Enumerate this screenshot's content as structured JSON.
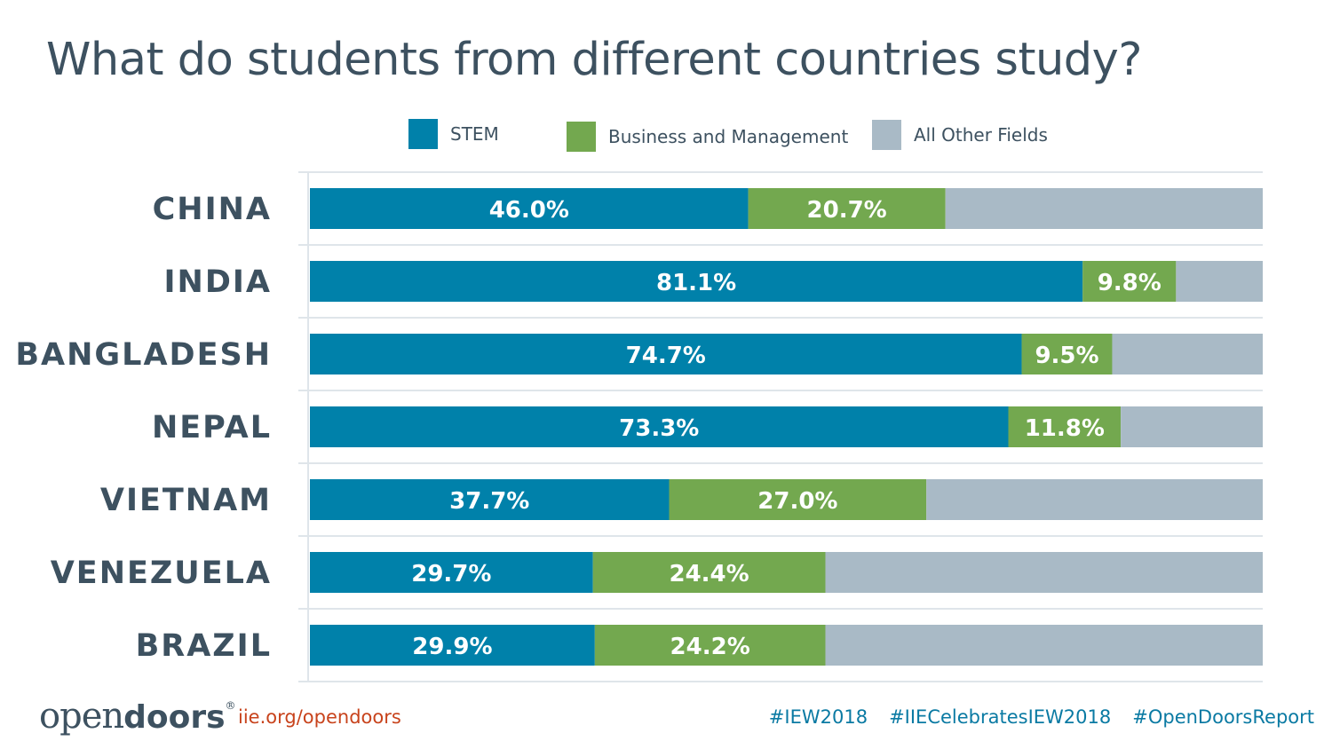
{
  "title": "What do students from different countries study?",
  "legend": [
    {
      "label": "STEM",
      "color": "#0081aa"
    },
    {
      "label": "Business and Management",
      "color": "#73a84f"
    },
    {
      "label": "All Other Fields",
      "color": "#a9bac6"
    }
  ],
  "chart_data": {
    "type": "bar",
    "orientation": "horizontal",
    "stacked": true,
    "percent_stacked": true,
    "title": "What do students from different countries study?",
    "categories": [
      "CHINA",
      "INDIA",
      "BANGLADESH",
      "NEPAL",
      "VIETNAM",
      "VENEZUELA",
      "BRAZIL"
    ],
    "series": [
      {
        "name": "STEM",
        "color": "#0081aa",
        "values": [
          46.0,
          81.1,
          74.7,
          73.3,
          37.7,
          29.7,
          29.9
        ],
        "labels": [
          "46.0%",
          "81.1%",
          "74.7%",
          "73.3%",
          "37.7%",
          "29.7%",
          "29.9%"
        ]
      },
      {
        "name": "Business and Management",
        "color": "#73a84f",
        "values": [
          20.7,
          9.8,
          9.5,
          11.8,
          27.0,
          24.4,
          24.2
        ],
        "labels": [
          "20.7%",
          "9.8%",
          "9.5%",
          "11.8%",
          "27.0%",
          "24.4%",
          "24.2%"
        ]
      },
      {
        "name": "All Other Fields",
        "color": "#a9bac6",
        "values": [
          33.3,
          9.1,
          15.8,
          14.9,
          35.3,
          45.9,
          45.9
        ]
      }
    ],
    "xlim": [
      0,
      100
    ],
    "legend_position": "top"
  },
  "footer": {
    "logo_light": "open",
    "logo_bold": "doors",
    "logo_mark": "®",
    "url": "iie.org/opendoors",
    "hashtags": [
      "#IEW2018",
      "#IIECelebratesIEW2018",
      "#OpenDoorsReport"
    ]
  }
}
